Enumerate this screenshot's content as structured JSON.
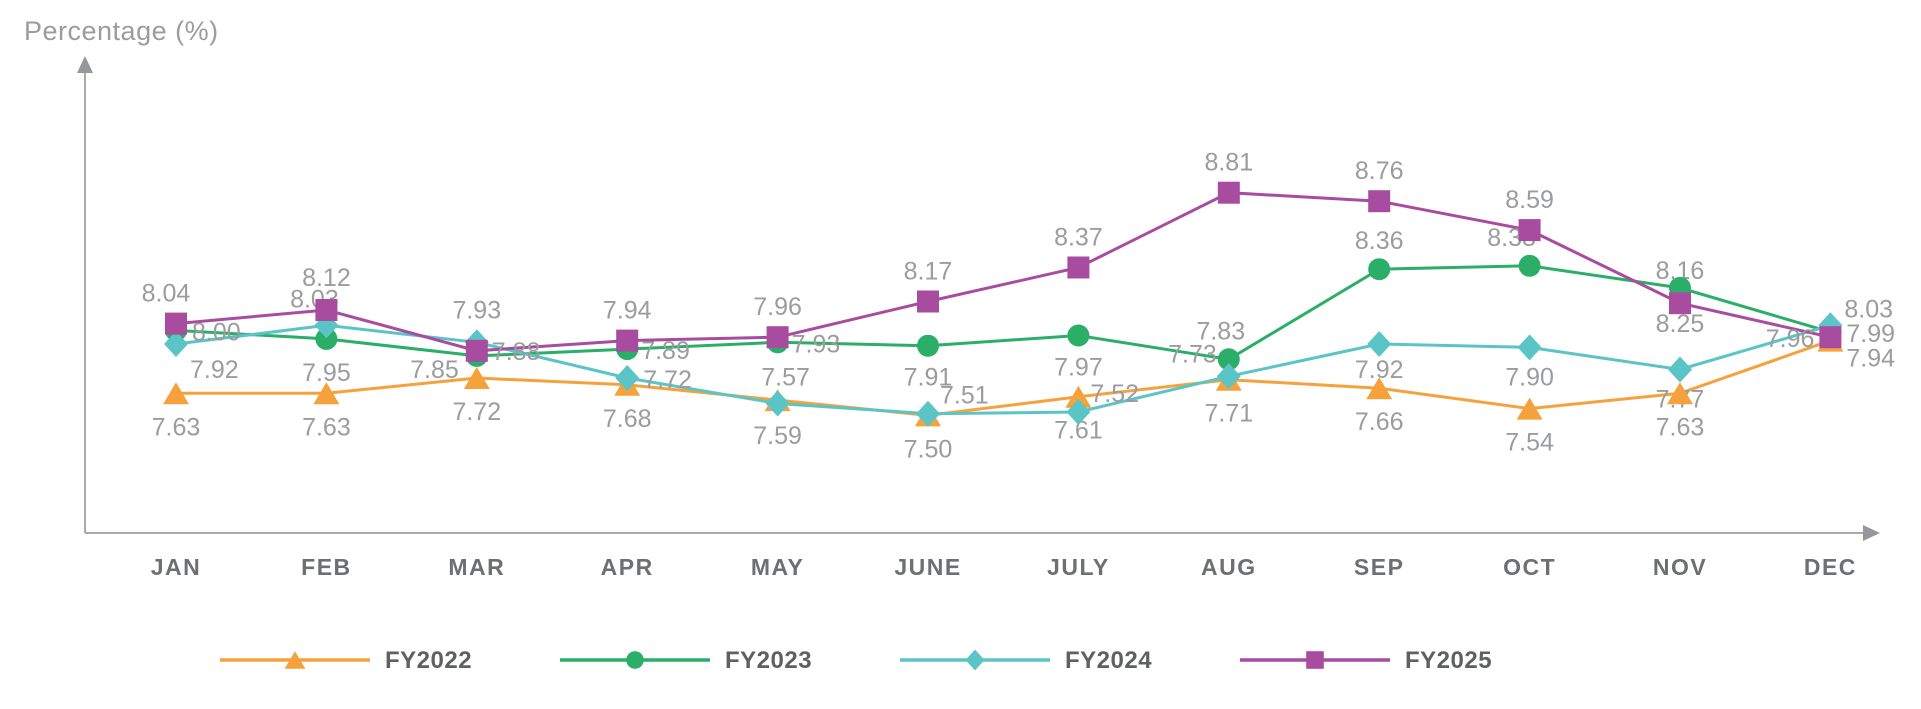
{
  "chart_data": {
    "type": "line",
    "title": "",
    "ylabel": "Percentage (%)",
    "xlabel": "",
    "categories": [
      "JAN",
      "FEB",
      "MAR",
      "APR",
      "MAY",
      "JUNE",
      "JULY",
      "AUG",
      "SEP",
      "OCT",
      "NOV",
      "DEC"
    ],
    "series": [
      {
        "name": "FY2022",
        "marker": "triangle",
        "color": "#F5A23C",
        "values": [
          7.63,
          7.63,
          7.72,
          7.68,
          7.59,
          7.5,
          7.61,
          7.71,
          7.66,
          7.54,
          7.63,
          7.94
        ]
      },
      {
        "name": "FY2023",
        "marker": "circle",
        "color": "#2BAE68",
        "values": [
          8.0,
          7.95,
          7.85,
          7.89,
          7.93,
          7.91,
          7.97,
          7.83,
          8.36,
          8.38,
          8.25,
          7.99
        ]
      },
      {
        "name": "FY2024",
        "marker": "diamond",
        "color": "#5BC4C6",
        "values": [
          7.92,
          8.03,
          7.93,
          7.72,
          7.57,
          7.51,
          7.52,
          7.73,
          7.92,
          7.9,
          7.77,
          8.03
        ]
      },
      {
        "name": "FY2025",
        "marker": "square",
        "color": "#A84C9F",
        "values": [
          8.04,
          8.12,
          7.88,
          7.94,
          7.96,
          8.17,
          8.37,
          8.81,
          8.76,
          8.59,
          8.16,
          7.96
        ]
      }
    ],
    "value_labels_visible": true,
    "value_label_format": "2-decimals",
    "legend_position": "bottom",
    "grid": false,
    "y_axis_ticks": "none",
    "axes_style": "arrows"
  },
  "colors": {
    "value_label": "#9B9C9E",
    "month_label": "#6D6F72",
    "legend_label": "#5E6063",
    "axis": "#A9AAAC"
  }
}
